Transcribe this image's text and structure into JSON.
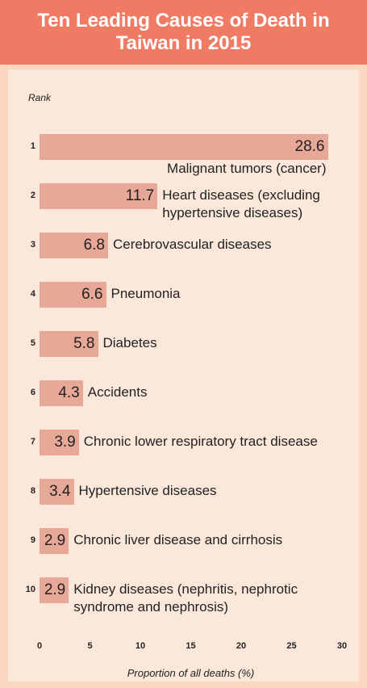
{
  "chart_data": {
    "type": "bar",
    "orientation": "horizontal",
    "title": "Ten Leading Causes of Death in Taiwan in 2015",
    "category_axis_label": "Rank",
    "x_axis_label": "Proportion of all deaths (%)",
    "ranks": [
      1,
      2,
      3,
      4,
      5,
      6,
      7,
      8,
      9,
      10
    ],
    "categories": [
      "Malignant tumors (cancer)",
      "Heart diseases (excluding hypertensive diseases)",
      "Cerebrovascular diseases",
      "Pneumonia",
      "Diabetes",
      "Accidents",
      "Chronic lower respiratory tract disease",
      "Hypertensive diseases",
      "Chronic liver disease and cirrhosis",
      "Kidney diseases (nephritis, nephrotic syndrome and nephrosis)"
    ],
    "values": [
      28.6,
      11.7,
      6.8,
      6.6,
      5.8,
      4.3,
      3.9,
      3.4,
      2.9,
      2.9
    ],
    "color": "#e8a898",
    "xlim": [
      0,
      30
    ],
    "xticks": [
      0,
      5,
      10,
      15,
      20,
      25,
      30
    ]
  }
}
